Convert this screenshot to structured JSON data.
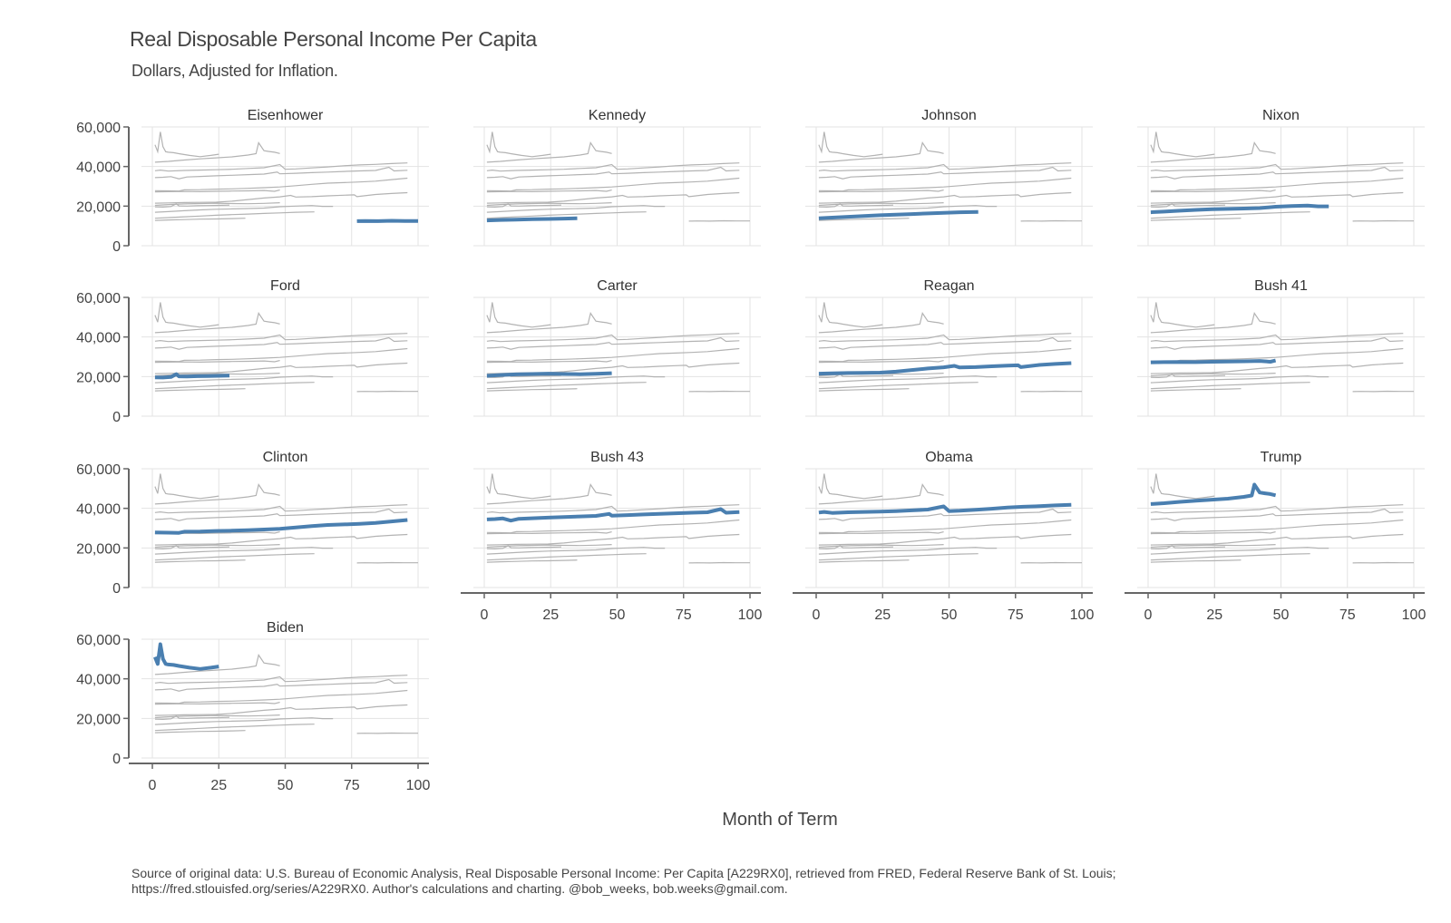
{
  "chart_data": {
    "type": "line",
    "title": "Real Disposable Personal Income Per Capita",
    "subtitle": "Dollars, Adjusted for Inflation.",
    "xlabel": "Month of Term",
    "caption_line1": "Source of original data: U.S. Bureau of Economic Analysis, Real Disposable Personal Income: Per Capita [A229RX0], retrieved from FRED, Federal Reserve Bank of St. Louis;",
    "caption_line2": "https://fred.stlouisfed.org/series/A229RX0. Author's calculations and charting. @bob_weeks, bob.weeks@gmail.com.",
    "xlim": [
      0,
      100
    ],
    "ylim": [
      0,
      60000
    ],
    "xticks": [
      0,
      25,
      50,
      75,
      100
    ],
    "yticks": [
      0,
      20000,
      40000,
      60000
    ],
    "ytick_labels": [
      "0",
      "20,000",
      "40,000",
      "60,000"
    ],
    "highlight_color": "#4a7fb0",
    "background_color": "#b3b3b3",
    "grid": true,
    "panel_layout": "facet-grid-4-columns",
    "series": [
      {
        "name": "Eisenhower",
        "x": [
          77,
          80,
          85,
          90,
          95,
          100
        ],
        "y": [
          12400,
          12500,
          12400,
          12600,
          12500,
          12500
        ]
      },
      {
        "name": "Kennedy",
        "x": [
          1,
          6,
          12,
          18,
          24,
          30,
          35
        ],
        "y": [
          12800,
          13000,
          13200,
          13400,
          13500,
          13700,
          13900
        ]
      },
      {
        "name": "Johnson",
        "x": [
          1,
          6,
          12,
          18,
          24,
          30,
          36,
          42,
          48,
          54,
          61
        ],
        "y": [
          13900,
          14200,
          14600,
          15000,
          15400,
          15700,
          16000,
          16300,
          16600,
          16900,
          17100
        ]
      },
      {
        "name": "Nixon",
        "x": [
          1,
          6,
          12,
          18,
          24,
          30,
          36,
          42,
          48,
          54,
          60,
          64,
          68
        ],
        "y": [
          16900,
          17200,
          17700,
          18100,
          18400,
          18600,
          18800,
          19000,
          19700,
          20000,
          20300,
          19900,
          19900
        ]
      },
      {
        "name": "Ford",
        "x": [
          1,
          4,
          7,
          9,
          10,
          13,
          17,
          21,
          25,
          29
        ],
        "y": [
          19600,
          19500,
          19800,
          21200,
          20100,
          20000,
          20200,
          20300,
          20400,
          20500
        ]
      },
      {
        "name": "Carter",
        "x": [
          1,
          6,
          12,
          18,
          24,
          30,
          36,
          42,
          48
        ],
        "y": [
          20400,
          20800,
          21100,
          21300,
          21500,
          21300,
          21200,
          21400,
          21700
        ]
      },
      {
        "name": "Reagan",
        "x": [
          1,
          6,
          12,
          18,
          24,
          30,
          36,
          42,
          48,
          52,
          54,
          60,
          66,
          72,
          76,
          77,
          84,
          90,
          96
        ],
        "y": [
          21500,
          21600,
          21800,
          21900,
          22000,
          22500,
          23300,
          24100,
          24700,
          25400,
          24600,
          24800,
          25200,
          25500,
          25700,
          24800,
          25900,
          26400,
          26800
        ]
      },
      {
        "name": "Bush 41",
        "x": [
          1,
          6,
          12,
          18,
          24,
          30,
          36,
          42,
          46,
          48
        ],
        "y": [
          27200,
          27300,
          27400,
          27300,
          27500,
          27600,
          27700,
          27900,
          27500,
          28100
        ]
      },
      {
        "name": "Clinton",
        "x": [
          1,
          6,
          10,
          12,
          18,
          24,
          30,
          36,
          42,
          48,
          54,
          60,
          66,
          72,
          78,
          84,
          90,
          96
        ],
        "y": [
          27800,
          27700,
          27600,
          28200,
          28300,
          28600,
          28700,
          29000,
          29300,
          29700,
          30300,
          31000,
          31600,
          31900,
          32200,
          32600,
          33400,
          34100
        ]
      },
      {
        "name": "Bush 43",
        "x": [
          1,
          4,
          7,
          10,
          13,
          18,
          24,
          30,
          36,
          42,
          47,
          48,
          54,
          60,
          66,
          72,
          78,
          84,
          89,
          91,
          96
        ],
        "y": [
          34400,
          34600,
          34900,
          33800,
          34700,
          35000,
          35300,
          35600,
          35900,
          36200,
          37200,
          36300,
          36600,
          36900,
          37200,
          37500,
          37800,
          38000,
          39600,
          37800,
          38100
        ]
      },
      {
        "name": "Obama",
        "x": [
          1,
          3,
          6,
          12,
          18,
          24,
          30,
          36,
          42,
          48,
          50,
          54,
          60,
          66,
          72,
          78,
          84,
          90,
          96
        ],
        "y": [
          37900,
          38200,
          37700,
          38000,
          38200,
          38400,
          38600,
          39000,
          39400,
          41000,
          38600,
          38800,
          39300,
          39800,
          40400,
          40800,
          41100,
          41500,
          41800
        ]
      },
      {
        "name": "Trump",
        "x": [
          1,
          6,
          12,
          18,
          24,
          30,
          36,
          39,
          40,
          42,
          44,
          46,
          48
        ],
        "y": [
          42200,
          42600,
          43300,
          43900,
          44400,
          44900,
          45800,
          46500,
          52000,
          48000,
          47600,
          47200,
          46600
        ]
      },
      {
        "name": "Biden",
        "x": [
          1,
          2,
          3,
          4,
          5,
          6,
          8,
          10,
          14,
          18,
          22,
          25
        ],
        "y": [
          51000,
          47500,
          57500,
          50000,
          47500,
          47200,
          47000,
          46500,
          45600,
          45000,
          45600,
          46200
        ]
      }
    ]
  }
}
